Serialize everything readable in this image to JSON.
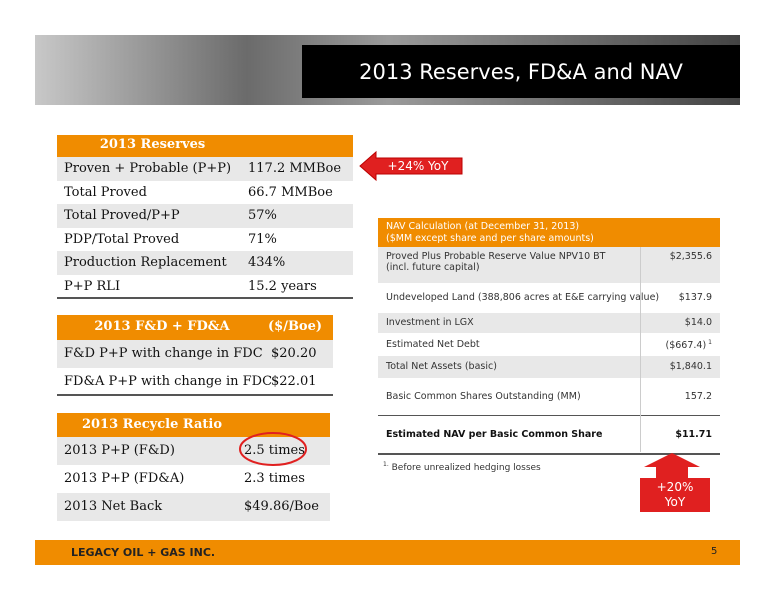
{
  "header": {
    "title": "2013 Reserves, FD&A and NAV"
  },
  "reserves": {
    "title": "2013 Reserves",
    "rows": [
      [
        "Proven + Probable (P+P)",
        "117.2 MMBoe"
      ],
      [
        "Total Proved",
        "66.7 MMBoe"
      ],
      [
        "Total Proved/P+P",
        "57%"
      ],
      [
        "PDP/Total Proved",
        "71%"
      ],
      [
        "Production Replacement",
        "434%"
      ],
      [
        "P+P RLI",
        "15.2 years"
      ]
    ]
  },
  "reserves_callout": "+24% YoY",
  "fda": {
    "headers": [
      "2013 F&D + FD&A",
      "($/Boe)"
    ],
    "rows": [
      [
        "F&D P+P with change in FDC",
        "$20.20"
      ],
      [
        "FD&A P+P with change in FDC",
        "$22.01"
      ]
    ]
  },
  "recycle": {
    "title": "2013 Recycle Ratio",
    "rows": [
      [
        "2013 P+P (F&D)",
        "2.5 times"
      ],
      [
        "2013 P+P (FD&A)",
        "2.3 times"
      ],
      [
        "2013 Net Back",
        "$49.86/Boe"
      ]
    ]
  },
  "nav": {
    "title_lines": [
      "NAV Calculation (at December 31, 2013)",
      "($MM except share and per share amounts)"
    ],
    "rows": [
      {
        "label": [
          "Proved Plus Probable Reserve Value NPV10 BT",
          "(incl. future capital)"
        ],
        "value": "$2,355.6"
      },
      {
        "label": [
          "Undeveloped Land (388,806 acres at E&E carrying value)"
        ],
        "value": "$137.9"
      },
      {
        "label": [
          "Investment in LGX"
        ],
        "value": "$14.0"
      },
      {
        "label": [
          "Estimated Net Debt"
        ],
        "value": "($667.4)",
        "note": "1"
      },
      {
        "label": [
          "Total Net Assets (basic)"
        ],
        "value": "$1,840.1"
      },
      {
        "label": [
          "Basic Common Shares Outstanding (MM)"
        ],
        "value": "157.2"
      },
      {
        "label": [
          "Estimated NAV per Basic Common Share"
        ],
        "value": "$11.71"
      }
    ]
  },
  "footnote": {
    "marker": "1.",
    "text": "Before unrealized hedging losses"
  },
  "nav_callout": [
    "+20%",
    "YoY"
  ],
  "footer": {
    "company": "LEGACY OIL + GAS INC.",
    "page": "5"
  }
}
